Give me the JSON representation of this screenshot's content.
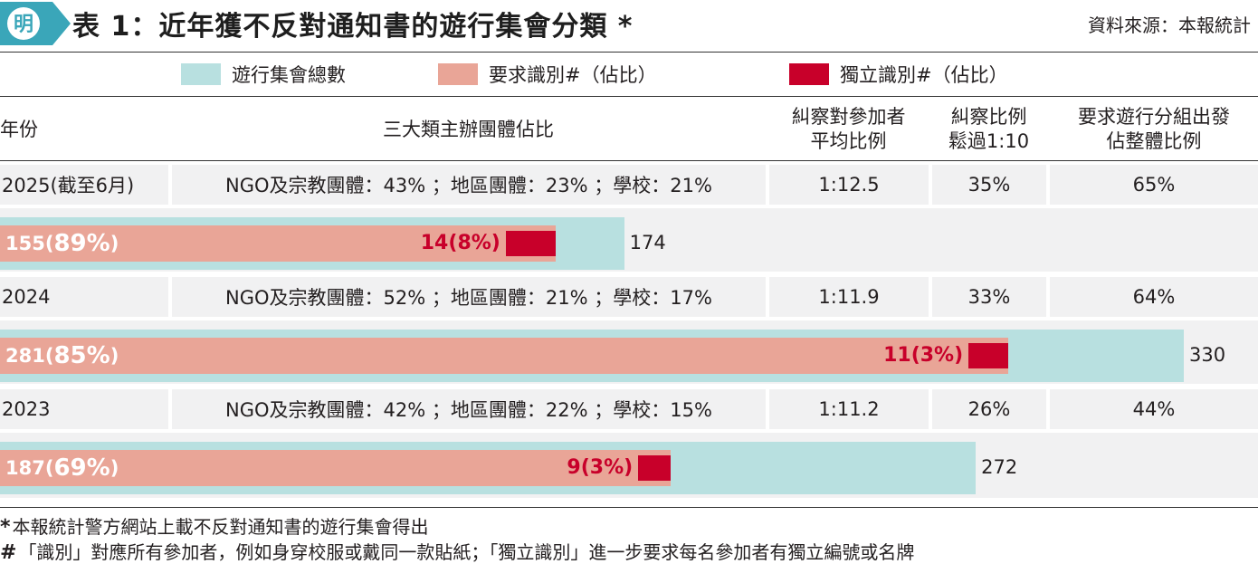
{
  "header": {
    "title": "表 1：近年獲不反對通知書的遊行集會分類 *",
    "source": "資料來源：本報統計"
  },
  "colors": {
    "total": "#b8e0e0",
    "requested": "#e9a597",
    "independent": "#c8002a",
    "logo": "#3aa6b9"
  },
  "legend": [
    {
      "label": "遊行集會總數",
      "color": "#b8e0e0"
    },
    {
      "label": "要求識別#（佔比）",
      "color": "#e9a597"
    },
    {
      "label": "獨立識別#（佔比）",
      "color": "#c8002a"
    }
  ],
  "columns": {
    "year": "年份",
    "organizers": "三大類主辦團體佔比",
    "ratio": "糾察對參加者\n平均比例",
    "over": "糾察比例\n鬆過1:10",
    "groups": "要求遊行分組出發\n佔整體比例"
  },
  "chart_data": {
    "type": "bar",
    "orientation": "horizontal",
    "title": "表 1：近年獲不反對通知書的遊行集會分類 *",
    "categories": [
      "2025(截至6月)",
      "2024",
      "2023"
    ],
    "series": [
      {
        "name": "遊行集會總數",
        "values": [
          174,
          330,
          272
        ]
      },
      {
        "name": "要求識別#（佔比）",
        "values": [
          155,
          281,
          187
        ],
        "shares": [
          "89%",
          "85%",
          "69%"
        ]
      },
      {
        "name": "獨立識別#（佔比）",
        "values": [
          14,
          11,
          9
        ],
        "shares": [
          "8%",
          "3%",
          "3%"
        ]
      }
    ],
    "xlim": [
      0,
      330
    ],
    "grid": false,
    "legend_position": "top"
  },
  "rows": [
    {
      "year": "2025(截至6月)",
      "organizers": "NGO及宗教團體：43% ；地區團體：23% ；學校：21%",
      "ratio": "1:12.5",
      "over": "35%",
      "groups": "65%",
      "total": 174,
      "req": 155,
      "req_pct": "89%",
      "ind": 14,
      "ind_pct": "8%"
    },
    {
      "year": "2024",
      "organizers": "NGO及宗教團體：52% ；地區團體：21% ；學校：17%",
      "ratio": "1:11.9",
      "over": "33%",
      "groups": "64%",
      "total": 330,
      "req": 281,
      "req_pct": "85%",
      "ind": 11,
      "ind_pct": "3%"
    },
    {
      "year": "2023",
      "organizers": "NGO及宗教團體：42% ；地區團體：22% ；學校：15%",
      "ratio": "1:11.2",
      "over": "26%",
      "groups": "44%",
      "total": 272,
      "req": 187,
      "req_pct": "69%",
      "ind": 9,
      "ind_pct": "3%"
    }
  ],
  "notes": [
    {
      "mark": "*",
      "text": "本報統計警方網站上載不反對通知書的遊行集會得出"
    },
    {
      "mark": "#",
      "text": "「識別」對應所有參加者，例如身穿校服或戴同一款貼紙；「獨立識別」進一步要求每名參加者有獨立編號或名牌"
    }
  ]
}
